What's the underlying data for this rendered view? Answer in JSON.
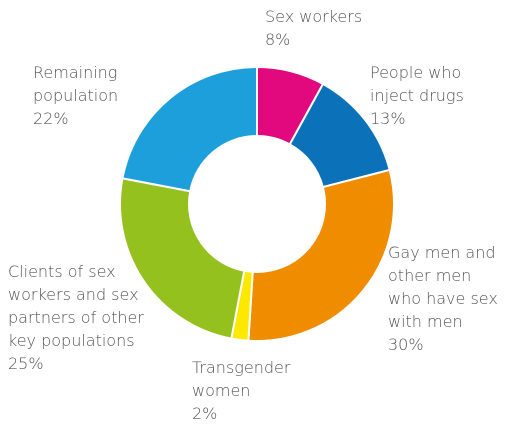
{
  "chart_data": {
    "type": "donut",
    "categories": [
      [
        "Sex workers"
      ],
      [
        "People who",
        "inject drugs"
      ],
      [
        "Gay men and",
        "other men",
        "who have sex",
        "with men"
      ],
      [
        "Transgender",
        "women"
      ],
      [
        "Clients of sex",
        "workers and sex",
        "partners of other",
        "key populations"
      ],
      [
        "Remaining",
        "population"
      ]
    ],
    "values": [
      8,
      13,
      30,
      2,
      25,
      22
    ],
    "value_labels": [
      "8%",
      "13%",
      "30%",
      "2%",
      "25%",
      "22%"
    ],
    "colors": [
      "#e2097e",
      "#0b72b9",
      "#f08c00",
      "#fde900",
      "#95c11f",
      "#1d9fdb"
    ]
  }
}
